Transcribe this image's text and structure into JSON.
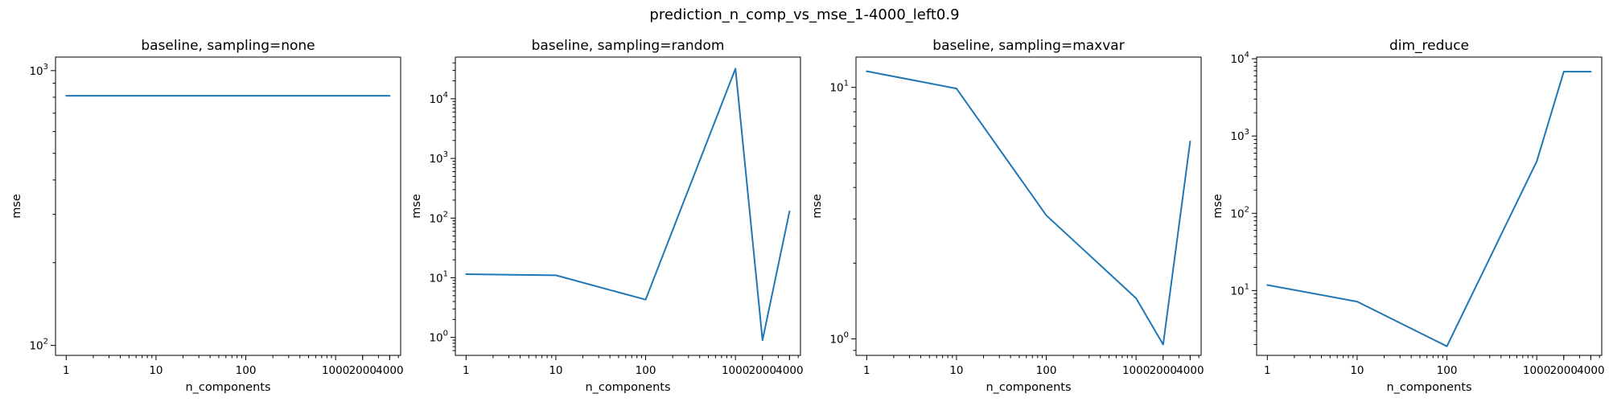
{
  "figure_title": "prediction_n_comp_vs_mse_1-4000_left0.9",
  "colors": {
    "series": "#1f77b4",
    "axes": "#000000",
    "background": "#ffffff"
  },
  "chart_data": [
    {
      "type": "line",
      "title": "baseline, sampling=none",
      "xlabel": "n_components",
      "ylabel": "mse",
      "xscale": "log",
      "yscale": "log",
      "x": [
        1,
        10,
        100,
        1000,
        2000,
        4000
      ],
      "xtick_labels": [
        "1",
        "10",
        "100",
        "1000",
        "2000",
        "4000"
      ],
      "xlim": [
        0.76,
        5300
      ],
      "ylim": [
        92,
        1120
      ],
      "ytick_values": [
        100,
        1000
      ],
      "ytick_base": [
        "10",
        "10"
      ],
      "ytick_exp": [
        "2",
        "3"
      ],
      "series": [
        {
          "values": [
            810,
            810,
            810,
            810,
            810,
            810
          ]
        }
      ],
      "grid": false
    },
    {
      "type": "line",
      "title": "baseline, sampling=random",
      "xlabel": "n_components",
      "ylabel": "mse",
      "xscale": "log",
      "yscale": "log",
      "x": [
        1,
        10,
        100,
        1000,
        2000,
        4000
      ],
      "xtick_labels": [
        "1",
        "10",
        "100",
        "1000",
        "2000",
        "4000"
      ],
      "xlim": [
        0.76,
        5300
      ],
      "ylim": [
        0.5,
        50000
      ],
      "ytick_values": [
        1,
        10,
        100,
        1000,
        10000
      ],
      "ytick_base": [
        "10",
        "10",
        "10",
        "10",
        "10"
      ],
      "ytick_exp": [
        "0",
        "1",
        "2",
        "3",
        "4"
      ],
      "series": [
        {
          "values": [
            11.5,
            11.0,
            4.3,
            32000,
            0.9,
            130
          ]
        }
      ],
      "grid": false
    },
    {
      "type": "line",
      "title": "baseline, sampling=maxvar",
      "xlabel": "n_components",
      "ylabel": "mse",
      "xscale": "log",
      "yscale": "log",
      "x": [
        1,
        10,
        100,
        1000,
        2000,
        4000
      ],
      "xtick_labels": [
        "1",
        "10",
        "100",
        "1000",
        "2000",
        "4000"
      ],
      "xlim": [
        0.76,
        5300
      ],
      "ylim": [
        0.86,
        13.2
      ],
      "ytick_values": [
        1,
        10
      ],
      "ytick_base": [
        "10",
        "10"
      ],
      "ytick_exp": [
        "0",
        "1"
      ],
      "series": [
        {
          "values": [
            11.6,
            9.9,
            3.1,
            1.45,
            0.95,
            6.1
          ]
        }
      ],
      "grid": false
    },
    {
      "type": "line",
      "title": "dim_reduce",
      "xlabel": "n_components",
      "ylabel": "mse",
      "xscale": "log",
      "yscale": "log",
      "x": [
        1,
        10,
        100,
        1000,
        2000,
        4000
      ],
      "xtick_labels": [
        "1",
        "10",
        "100",
        "1000",
        "2000",
        "4000"
      ],
      "xlim": [
        0.76,
        5300
      ],
      "ylim": [
        1.45,
        10500
      ],
      "ytick_values": [
        10,
        100,
        1000,
        10000
      ],
      "ytick_base": [
        "10",
        "10",
        "10",
        "10"
      ],
      "ytick_exp": [
        "1",
        "2",
        "3",
        "4"
      ],
      "series": [
        {
          "values": [
            11.8,
            7.2,
            1.9,
            470,
            6800,
            6800
          ]
        }
      ],
      "grid": false
    }
  ]
}
